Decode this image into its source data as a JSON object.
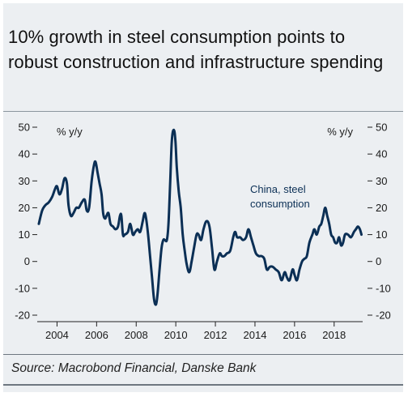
{
  "title": "10% growth in steel consumption points to robust construction and infrastructure spending",
  "source": "Source: Macrobond Financial, Danske Bank",
  "colors": {
    "series": "#0b2f55",
    "background": "#eceff2",
    "rule": "#6e7780"
  },
  "chart_data": {
    "type": "line",
    "left_unit_label": "% y/y",
    "right_unit_label": "% y/y",
    "annotation": [
      "China, steel",
      "consumption"
    ],
    "ylim": [
      -20,
      50
    ],
    "yticks": [
      50,
      40,
      30,
      20,
      10,
      0,
      -10,
      -20
    ],
    "ytick_labels": [
      "50",
      "40",
      "30",
      "20",
      "10",
      "0",
      "-10",
      "-20"
    ],
    "xlim": [
      2003.0,
      2019.85
    ],
    "xticks": [
      2004,
      2006,
      2008,
      2010,
      2012,
      2014,
      2016,
      2018
    ],
    "xtick_labels": [
      "2004",
      "2006",
      "2008",
      "2010",
      "2012",
      "2014",
      "2016",
      "2018"
    ],
    "grid": false,
    "legend": "none",
    "series": [
      {
        "values": [
          [
            2003.08,
            14
          ],
          [
            2003.25,
            19
          ],
          [
            2003.42,
            21
          ],
          [
            2003.58,
            22
          ],
          [
            2003.75,
            24
          ],
          [
            2003.9,
            27
          ],
          [
            2004.0,
            28
          ],
          [
            2004.12,
            25
          ],
          [
            2004.25,
            27
          ],
          [
            2004.38,
            31
          ],
          [
            2004.5,
            29
          ],
          [
            2004.58,
            21
          ],
          [
            2004.7,
            17
          ],
          [
            2004.83,
            18
          ],
          [
            2004.97,
            20
          ],
          [
            2005.1,
            20
          ],
          [
            2005.25,
            22
          ],
          [
            2005.4,
            23
          ],
          [
            2005.5,
            19
          ],
          [
            2005.62,
            20
          ],
          [
            2005.75,
            30
          ],
          [
            2005.87,
            36
          ],
          [
            2005.95,
            37
          ],
          [
            2006.05,
            33
          ],
          [
            2006.15,
            29
          ],
          [
            2006.25,
            25
          ],
          [
            2006.33,
            18
          ],
          [
            2006.42,
            16
          ],
          [
            2006.5,
            17
          ],
          [
            2006.6,
            18
          ],
          [
            2006.7,
            14
          ],
          [
            2006.83,
            13
          ],
          [
            2006.95,
            12
          ],
          [
            2007.08,
            13
          ],
          [
            2007.18,
            17
          ],
          [
            2007.25,
            17
          ],
          [
            2007.33,
            10
          ],
          [
            2007.42,
            10
          ],
          [
            2007.58,
            11
          ],
          [
            2007.7,
            14
          ],
          [
            2007.83,
            10
          ],
          [
            2007.95,
            11
          ],
          [
            2008.08,
            12
          ],
          [
            2008.2,
            11
          ],
          [
            2008.33,
            15
          ],
          [
            2008.42,
            18
          ],
          [
            2008.5,
            16
          ],
          [
            2008.6,
            10
          ],
          [
            2008.7,
            2
          ],
          [
            2008.8,
            -6
          ],
          [
            2008.9,
            -14
          ],
          [
            2009.0,
            -16
          ],
          [
            2009.08,
            -12
          ],
          [
            2009.18,
            -3
          ],
          [
            2009.28,
            5
          ],
          [
            2009.37,
            8
          ],
          [
            2009.45,
            8
          ],
          [
            2009.55,
            8
          ],
          [
            2009.63,
            14
          ],
          [
            2009.72,
            30
          ],
          [
            2009.8,
            45
          ],
          [
            2009.9,
            49
          ],
          [
            2009.98,
            45
          ],
          [
            2010.05,
            35
          ],
          [
            2010.15,
            26
          ],
          [
            2010.25,
            20
          ],
          [
            2010.35,
            10
          ],
          [
            2010.45,
            4
          ],
          [
            2010.55,
            -1
          ],
          [
            2010.68,
            -4
          ],
          [
            2010.8,
            0
          ],
          [
            2010.92,
            5
          ],
          [
            2011.05,
            10
          ],
          [
            2011.15,
            10
          ],
          [
            2011.28,
            8
          ],
          [
            2011.4,
            12
          ],
          [
            2011.55,
            15
          ],
          [
            2011.7,
            13
          ],
          [
            2011.83,
            5
          ],
          [
            2011.95,
            -3
          ],
          [
            2012.08,
            0
          ],
          [
            2012.22,
            3
          ],
          [
            2012.33,
            2
          ],
          [
            2012.45,
            2
          ],
          [
            2012.58,
            3
          ],
          [
            2012.75,
            4
          ],
          [
            2012.9,
            9
          ],
          [
            2013.0,
            11
          ],
          [
            2013.1,
            9
          ],
          [
            2013.25,
            9
          ],
          [
            2013.4,
            8
          ],
          [
            2013.55,
            9
          ],
          [
            2013.67,
            12
          ],
          [
            2013.8,
            9
          ],
          [
            2013.92,
            6
          ],
          [
            2014.05,
            3
          ],
          [
            2014.2,
            2
          ],
          [
            2014.33,
            2
          ],
          [
            2014.47,
            1
          ],
          [
            2014.6,
            -3
          ],
          [
            2014.75,
            -2
          ],
          [
            2014.9,
            -2
          ],
          [
            2015.05,
            -3
          ],
          [
            2015.2,
            -4
          ],
          [
            2015.35,
            -7
          ],
          [
            2015.5,
            -4
          ],
          [
            2015.62,
            -6
          ],
          [
            2015.75,
            -7
          ],
          [
            2015.9,
            -3
          ],
          [
            2016.0,
            -5
          ],
          [
            2016.12,
            -7
          ],
          [
            2016.25,
            -3
          ],
          [
            2016.38,
            0
          ],
          [
            2016.5,
            1
          ],
          [
            2016.62,
            2
          ],
          [
            2016.75,
            7
          ],
          [
            2016.9,
            10
          ],
          [
            2017.0,
            12
          ],
          [
            2017.12,
            10
          ],
          [
            2017.25,
            13
          ],
          [
            2017.35,
            14
          ],
          [
            2017.45,
            17
          ],
          [
            2017.55,
            20
          ],
          [
            2017.65,
            17
          ],
          [
            2017.75,
            14
          ],
          [
            2017.85,
            10
          ],
          [
            2017.95,
            9
          ],
          [
            2018.05,
            7
          ],
          [
            2018.15,
            7
          ],
          [
            2018.25,
            9
          ],
          [
            2018.35,
            6
          ],
          [
            2018.45,
            7
          ],
          [
            2018.55,
            10
          ],
          [
            2018.7,
            10
          ],
          [
            2018.85,
            9
          ],
          [
            2019.0,
            11
          ],
          [
            2019.1,
            12
          ],
          [
            2019.2,
            13
          ],
          [
            2019.3,
            12
          ],
          [
            2019.38,
            10
          ]
        ]
      }
    ]
  }
}
